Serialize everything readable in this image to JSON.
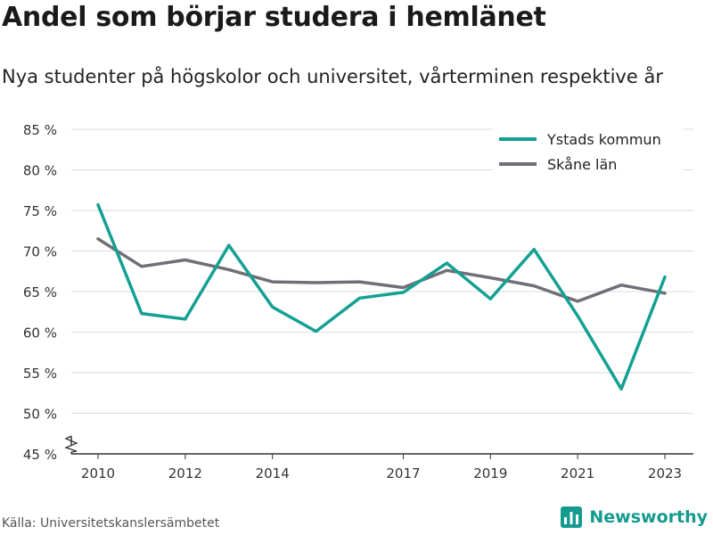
{
  "title": "Andel som börjar studera i hemlänet",
  "subtitle": "Nya studenter på högskolor och universitet, vårterminen respektive år",
  "source": "Källa: Universitetskanslersämbetet",
  "brand": "Newsworthy",
  "colors": {
    "ystad": "#14a093",
    "skane": "#6f6f77",
    "grid": "#dcdcdc",
    "axis": "#333333",
    "brand": "#159b8e"
  },
  "chart_data": {
    "type": "line",
    "x": [
      2010,
      2011,
      2012,
      2013,
      2014,
      2015,
      2016,
      2017,
      2018,
      2019,
      2020,
      2021,
      2022,
      2023
    ],
    "x_tick_labels": [
      "2010",
      "2012",
      "2014",
      "2017",
      "2019",
      "2021",
      "2023"
    ],
    "x_tick_values": [
      2010,
      2012,
      2014,
      2017,
      2019,
      2021,
      2023
    ],
    "y_tick_labels": [
      "45 %",
      "50 %",
      "55 %",
      "60 %",
      "65 %",
      "70 %",
      "75 %",
      "80 %",
      "85 %"
    ],
    "y_tick_values": [
      45,
      50,
      55,
      60,
      65,
      70,
      75,
      80,
      85
    ],
    "ylim": [
      45,
      85
    ],
    "y_axis_break": true,
    "grid": true,
    "legend_position": "top-right",
    "series": [
      {
        "name": "Ystads kommun",
        "color": "#14a093",
        "values": [
          75.7,
          62.3,
          61.6,
          70.7,
          63.1,
          60.1,
          64.2,
          64.9,
          68.5,
          64.1,
          70.2,
          62.0,
          53.0,
          66.8
        ]
      },
      {
        "name": "Skåne län",
        "color": "#6f6f77",
        "values": [
          71.5,
          68.1,
          68.9,
          67.7,
          66.2,
          66.1,
          66.2,
          65.5,
          67.6,
          66.7,
          65.7,
          63.8,
          65.8,
          64.8
        ]
      }
    ]
  }
}
